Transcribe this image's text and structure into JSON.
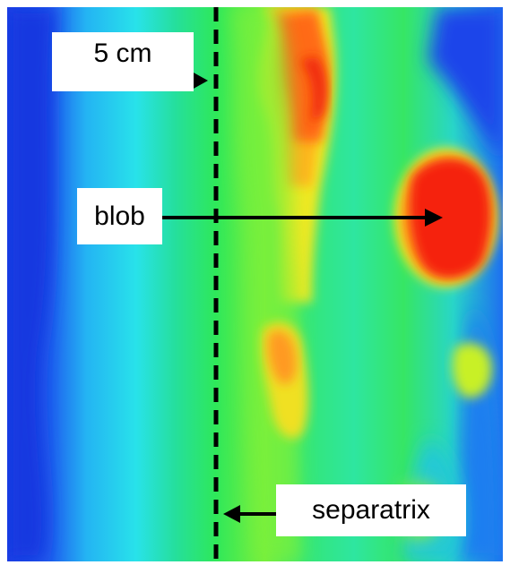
{
  "labels": {
    "scale": "5 cm",
    "blob": "blob",
    "separatrix": "separatrix"
  },
  "colors": {
    "background": "#ffffff",
    "colormap": [
      "#1a37e0",
      "#1e6bf0",
      "#22b7f4",
      "#24e6e6",
      "#22e08a",
      "#2ee85a",
      "#8bf03a",
      "#e8f020",
      "#ffb020",
      "#ff6a18",
      "#f02a10"
    ],
    "annotation": "#000000"
  }
}
